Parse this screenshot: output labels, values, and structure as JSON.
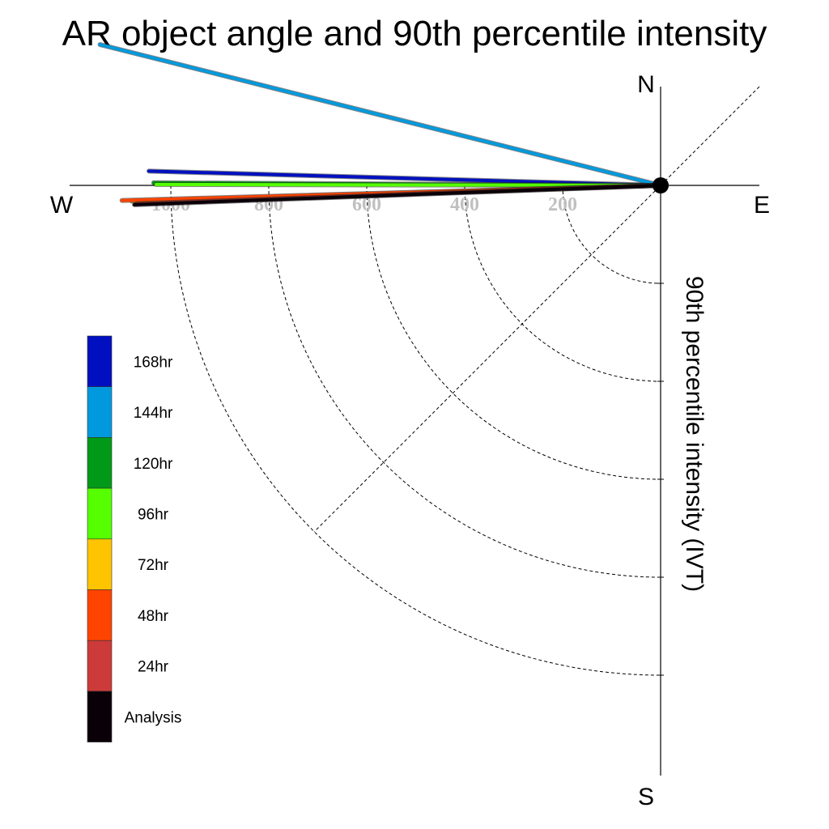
{
  "chart_data": {
    "type": "polar-line",
    "title": "AR object angle and 90th percentile intensity",
    "radial_label": "90th percentile intensity (IVT)",
    "compass": {
      "north": "N",
      "east": "E",
      "south": "S",
      "west": "W"
    },
    "radial_ticks": [
      200,
      400,
      600,
      800,
      1000
    ],
    "radial_tick_labels": [
      "200",
      "400",
      "600",
      "800",
      "1000"
    ],
    "radial_max": 1000,
    "grid": true,
    "legend_position": "left",
    "series": [
      {
        "name": "168hr",
        "color": "#0010c0",
        "angle_deg": 178.4,
        "intensity": 1045
      },
      {
        "name": "144hr",
        "color": "#0099dd",
        "angle_deg": 165.9,
        "intensity": 1180
      },
      {
        "name": "120hr",
        "color": "#009a18",
        "angle_deg": 179.7,
        "intensity": 1035
      },
      {
        "name": "96hr",
        "color": "#55ff00",
        "angle_deg": 179.9,
        "intensity": 1030
      },
      {
        "name": "72hr",
        "color": "#ffc400",
        "angle_deg": 181.7,
        "intensity": 1080
      },
      {
        "name": "48hr",
        "color": "#ff4400",
        "angle_deg": 181.6,
        "intensity": 1100
      },
      {
        "name": "24hr",
        "color": "#cc3a3a",
        "angle_deg": 182.0,
        "intensity": 1070
      },
      {
        "name": "Analysis",
        "color": "#0a0008",
        "angle_deg": 182.1,
        "intensity": 1075
      }
    ]
  }
}
